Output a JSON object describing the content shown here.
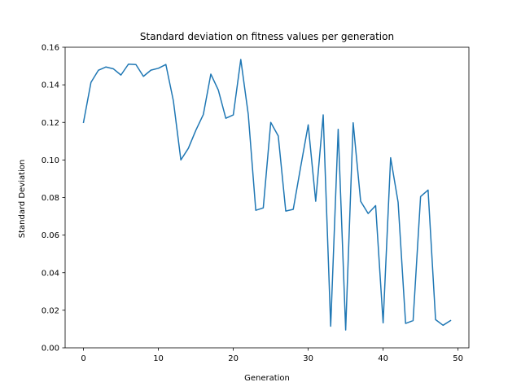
{
  "chart_data": {
    "type": "line",
    "title": "Standard deviation on fitness values per generation",
    "xlabel": "Generation",
    "ylabel": "Standard Deviation",
    "xlim": [
      -2.45,
      51.45
    ],
    "ylim": [
      0.0,
      0.16
    ],
    "xticks": [
      0,
      10,
      20,
      30,
      40,
      50
    ],
    "xtick_labels": [
      "0",
      "10",
      "20",
      "30",
      "40",
      "50"
    ],
    "yticks": [
      0.0,
      0.02,
      0.04,
      0.06,
      0.08,
      0.1,
      0.12,
      0.14,
      0.16
    ],
    "ytick_labels": [
      "0.00",
      "0.02",
      "0.04",
      "0.06",
      "0.08",
      "0.10",
      "0.12",
      "0.14",
      "0.16"
    ],
    "grid": false,
    "line_color": "#1f77b4",
    "x": [
      0,
      1,
      2,
      3,
      4,
      5,
      6,
      7,
      8,
      9,
      10,
      11,
      12,
      13,
      14,
      15,
      16,
      17,
      18,
      19,
      20,
      21,
      22,
      23,
      24,
      25,
      26,
      27,
      28,
      29,
      30,
      31,
      32,
      33,
      34,
      35,
      36,
      37,
      38,
      39,
      40,
      41,
      42,
      43,
      44,
      45,
      46,
      47,
      48,
      49
    ],
    "series": [
      {
        "values": [
          0.12,
          0.1413,
          0.1478,
          0.1495,
          0.1485,
          0.1452,
          0.151,
          0.1508,
          0.1445,
          0.1478,
          0.1488,
          0.1508,
          0.1315,
          0.1,
          0.1062,
          0.1158,
          0.1242,
          0.1457,
          0.1372,
          0.1222,
          0.124,
          0.1535,
          0.1242,
          0.0732,
          0.0745,
          0.12,
          0.1128,
          0.0728,
          0.0737,
          0.0965,
          0.1187,
          0.078,
          0.124,
          0.0115,
          0.1163,
          0.0095,
          0.1198,
          0.078,
          0.0715,
          0.0757,
          0.0133,
          0.1012,
          0.0775,
          0.013,
          0.0145,
          0.0805,
          0.084,
          0.015,
          0.012,
          0.0145
        ]
      }
    ]
  }
}
